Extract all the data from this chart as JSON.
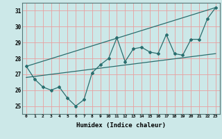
{
  "xlabel": "Humidex (Indice chaleur)",
  "ylabel": "",
  "bg_color": "#cce8e8",
  "line_color": "#2a6e6e",
  "grid_color": "#e8a0a0",
  "xlim": [
    -0.5,
    23.5
  ],
  "ylim": [
    24.5,
    31.5
  ],
  "yticks": [
    25,
    26,
    27,
    28,
    29,
    30,
    31
  ],
  "xticks": [
    0,
    1,
    2,
    3,
    4,
    5,
    6,
    7,
    8,
    9,
    10,
    11,
    12,
    13,
    14,
    15,
    16,
    17,
    18,
    19,
    20,
    21,
    22,
    23
  ],
  "main_data": {
    "x": [
      0,
      1,
      2,
      3,
      4,
      5,
      6,
      7,
      8,
      9,
      10,
      11,
      12,
      13,
      14,
      15,
      16,
      17,
      18,
      19,
      20,
      21,
      22,
      23
    ],
    "y": [
      27.5,
      26.7,
      26.2,
      26.0,
      26.2,
      25.5,
      25.0,
      25.4,
      27.1,
      27.6,
      28.0,
      29.3,
      27.8,
      28.6,
      28.7,
      28.4,
      28.3,
      29.5,
      28.3,
      28.2,
      29.2,
      29.2,
      30.5,
      31.2
    ]
  },
  "trend_line_low": {
    "x": [
      0,
      23
    ],
    "y": [
      26.8,
      28.3
    ]
  },
  "trend_line_high": {
    "x": [
      0,
      23
    ],
    "y": [
      27.5,
      31.2
    ]
  }
}
